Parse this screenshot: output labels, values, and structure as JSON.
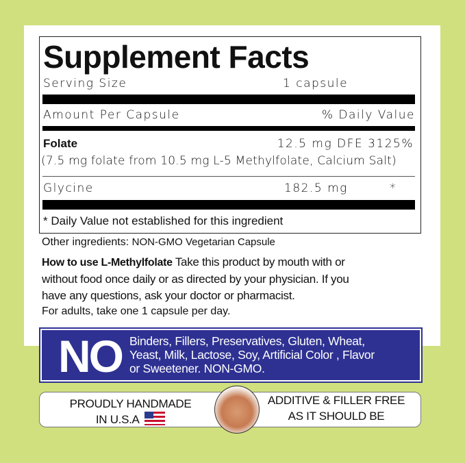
{
  "colors": {
    "background": "#d0e07e",
    "no_box": "#2e3192"
  },
  "facts": {
    "title": "Supplement Facts",
    "serving_label": "Serving Size",
    "serving_value": "1 capsule",
    "amount_label": "Amount Per Capsule",
    "dv_label": "% Daily Value",
    "folate_name": "Folate",
    "folate_amount": "12.5 mg DFE 3125%",
    "folate_detail": "(7.5 mg folate from  10.5 mg L-5 Methylfolate, Calcium Salt)",
    "glycine_name": "Glycine",
    "glycine_amount": "182.5 mg",
    "glycine_dv": "*",
    "footnote": "* Daily Value not established for this ingredient"
  },
  "other": {
    "label": "Other ingredients:",
    "value": "NON-GMO Vegetarian Capsule",
    "howto_label": "How to use L-Methylfolate",
    "howto_text1": "Take this product by mouth with or",
    "howto_text2": "without food once daily or as directed by your physician. If you",
    "howto_text3": "have any questions, ask your doctor or pharmacist.",
    "adults": "For adults, take one 1 capsule per day."
  },
  "no_banner": {
    "big": "NO",
    "line1": "Binders, Fillers, Preservatives, Gluten, Wheat,",
    "line2": "Yeast, Milk, Lactose, Soy, Artificial Color , Flavor",
    "line3": "or Sweetener. NON-GMO."
  },
  "bottom": {
    "left1": "PROUDLY HANDMADE",
    "left2": "IN U.S.A",
    "right1": "ADDITIVE & FILLER FREE",
    "right2": "AS IT SHOULD BE",
    "flag_icon": "us-flag-icon",
    "hand_icon": "pointing-hand-icon"
  }
}
